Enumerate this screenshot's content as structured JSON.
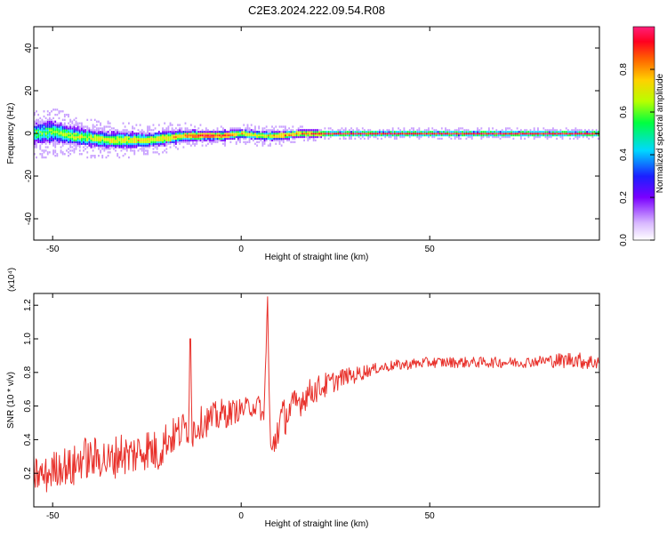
{
  "title": "C2E3.2024.222.09.54.R08",
  "colorbar": {
    "label": "Normalized spectral amplitude",
    "ticks": [
      "0.0",
      "0.2",
      "0.4",
      "0.6",
      "0.8"
    ],
    "tick_values": [
      0.0,
      0.2,
      0.4,
      0.6,
      0.8
    ],
    "range": [
      0,
      1
    ]
  },
  "chart_data": [
    {
      "type": "heatmap",
      "xlabel": "Height of straight line (km)",
      "ylabel": "Frequency (Hz)",
      "xlim": [
        -55,
        95
      ],
      "ylim": [
        -50,
        50
      ],
      "x_ticks": [
        -50,
        0,
        50
      ],
      "y_ticks": [
        -40,
        -20,
        0,
        20,
        40
      ],
      "colorscale": [
        "#ffffff",
        "#c8a0ff",
        "#7a00ff",
        "#1a20ff",
        "#00d8ff",
        "#00ff40",
        "#b8ff00",
        "#ffd000",
        "#ff6000",
        "#ff0020",
        "#ff1f7a"
      ],
      "ridge": {
        "description_free": true,
        "x": [
          -55,
          -50,
          -45,
          -40,
          -35,
          -30,
          -25,
          -20,
          -15,
          -10,
          -5,
          0,
          5,
          10,
          15,
          20,
          22,
          30,
          40,
          50,
          60,
          70,
          80,
          90,
          95
        ],
        "center_hz": [
          0,
          1,
          -1,
          -2,
          -3,
          -3,
          -3,
          -2,
          -1,
          -1,
          -1,
          0,
          -1,
          -1,
          0,
          0,
          0,
          0,
          0,
          0,
          0,
          0,
          0,
          0,
          0
        ],
        "spread_hz": [
          5,
          5,
          4,
          4,
          3.5,
          3.5,
          3,
          3,
          2.5,
          2,
          2,
          2,
          2,
          2,
          1.6,
          1.6,
          1.2,
          1.2,
          1.2,
          1.2,
          1.2,
          1.2,
          1.2,
          1.2,
          1.2
        ],
        "peak_amplitude": [
          0.5,
          0.55,
          0.6,
          0.6,
          0.65,
          0.65,
          0.7,
          0.7,
          0.75,
          0.95,
          0.85,
          0.7,
          0.65,
          0.75,
          0.8,
          0.85,
          0.9,
          0.9,
          0.9,
          0.9,
          0.9,
          0.9,
          0.9,
          0.9,
          0.9
        ]
      }
    },
    {
      "type": "line",
      "xlabel": "Height of straight line (km)",
      "ylabel": "SNR (10 * v/v)",
      "y_multiplier": "(x10⁴)",
      "xlim": [
        -55,
        95
      ],
      "ylim": [
        0.0,
        1.27
      ],
      "x_ticks": [
        -50,
        0,
        50
      ],
      "y_ticks": [
        0.2,
        0.4,
        0.6,
        0.8,
        1.0,
        1.2
      ],
      "y_tick_labels": [
        "0.2",
        "0.4",
        "0.6",
        "0.8",
        "1.0",
        "1.2"
      ],
      "series": [
        {
          "color": "#e8302a",
          "x": [
            -55,
            -52,
            -50,
            -47,
            -45,
            -42,
            -40,
            -37,
            -35,
            -32,
            -30,
            -27,
            -25,
            -22,
            -20,
            -18,
            -16,
            -14,
            -13.5,
            -13,
            -11,
            -8,
            -5,
            -3,
            0,
            3,
            5,
            6,
            7,
            7.5,
            8,
            9,
            10,
            12,
            14,
            16,
            18,
            20,
            22,
            24,
            26,
            28,
            30,
            32,
            35,
            40,
            45,
            50,
            55,
            60,
            65,
            70,
            75,
            80,
            85,
            88,
            90,
            93,
            95
          ],
          "values": [
            0.2,
            0.18,
            0.22,
            0.25,
            0.22,
            0.3,
            0.28,
            0.3,
            0.26,
            0.33,
            0.3,
            0.33,
            0.35,
            0.32,
            0.4,
            0.42,
            0.45,
            0.48,
            1.0,
            0.45,
            0.5,
            0.52,
            0.55,
            0.56,
            0.58,
            0.6,
            0.6,
            0.5,
            1.25,
            0.55,
            0.3,
            0.4,
            0.5,
            0.55,
            0.6,
            0.64,
            0.68,
            0.7,
            0.72,
            0.74,
            0.76,
            0.78,
            0.78,
            0.8,
            0.82,
            0.84,
            0.85,
            0.86,
            0.86,
            0.86,
            0.86,
            0.86,
            0.86,
            0.87,
            0.87,
            0.88,
            0.87,
            0.86,
            0.87
          ],
          "noise": [
            0.07,
            0.07,
            0.07,
            0.07,
            0.08,
            0.08,
            0.08,
            0.08,
            0.08,
            0.08,
            0.08,
            0.08,
            0.08,
            0.08,
            0.07,
            0.07,
            0.07,
            0.07,
            0.0,
            0.07,
            0.06,
            0.06,
            0.06,
            0.05,
            0.04,
            0.04,
            0.04,
            0.05,
            0.0,
            0.05,
            0.05,
            0.08,
            0.08,
            0.07,
            0.06,
            0.06,
            0.05,
            0.05,
            0.05,
            0.04,
            0.04,
            0.03,
            0.03,
            0.03,
            0.02,
            0.02,
            0.02,
            0.02,
            0.02,
            0.02,
            0.02,
            0.02,
            0.02,
            0.02,
            0.03,
            0.03,
            0.03,
            0.03,
            0.03
          ]
        }
      ]
    }
  ]
}
